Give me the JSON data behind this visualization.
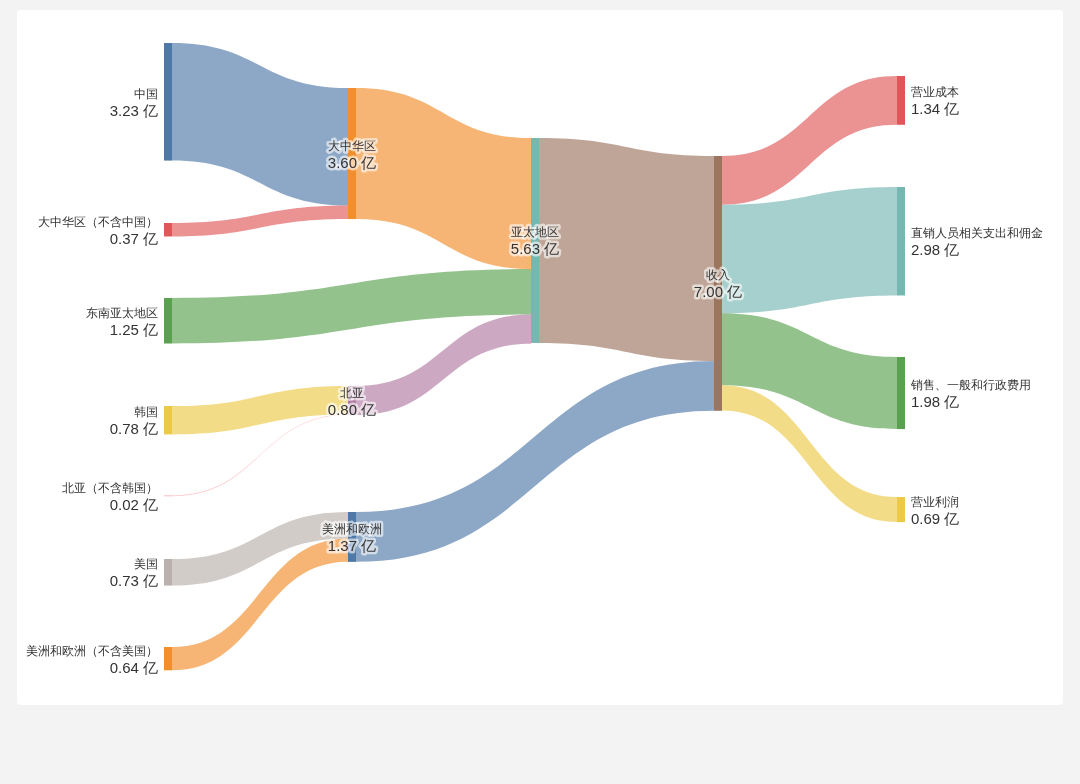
{
  "chart_data": {
    "type": "other",
    "categories": [
      "中国",
      "大中华区（不含中国）",
      "东南亚太地区",
      "韩国",
      "北亚（不含韩国）",
      "美国",
      "美洲和欧洲（不含美国）",
      "大中华区",
      "北亚",
      "美洲和欧洲",
      "亚太地区",
      "收入",
      "营业成本",
      "直销人员相关支出和佣金",
      "销售、一般和行政费用",
      "营业利润"
    ],
    "values": [
      3.23,
      0.37,
      1.25,
      0.78,
      0.02,
      0.73,
      0.64,
      3.6,
      0.8,
      1.37,
      5.63,
      7.0,
      1.34,
      2.98,
      1.98,
      0.69
    ],
    "value_labels": [
      "3.23 亿",
      "0.37 亿",
      "1.25 亿",
      "0.78 亿",
      "0.02 亿",
      "0.73 亿",
      "0.64 亿",
      "3.60 亿",
      "0.80 亿",
      "1.37 亿",
      "5.63 亿",
      "7.00 亿",
      "1.34 亿",
      "2.98 亿",
      "1.98 亿",
      "0.69 亿"
    ],
    "colors": [
      "#4e79a7",
      "#e15759",
      "#59a14f",
      "#edc948",
      "#ff9da7",
      "#bab0ac",
      "#f28e2b",
      "#f28e2b",
      "#b07aa1",
      "#4e79a7",
      "#76b7b2",
      "#9c755f",
      "#e15759",
      "#76b7b2",
      "#59a14f",
      "#edc948"
    ]
  }
}
